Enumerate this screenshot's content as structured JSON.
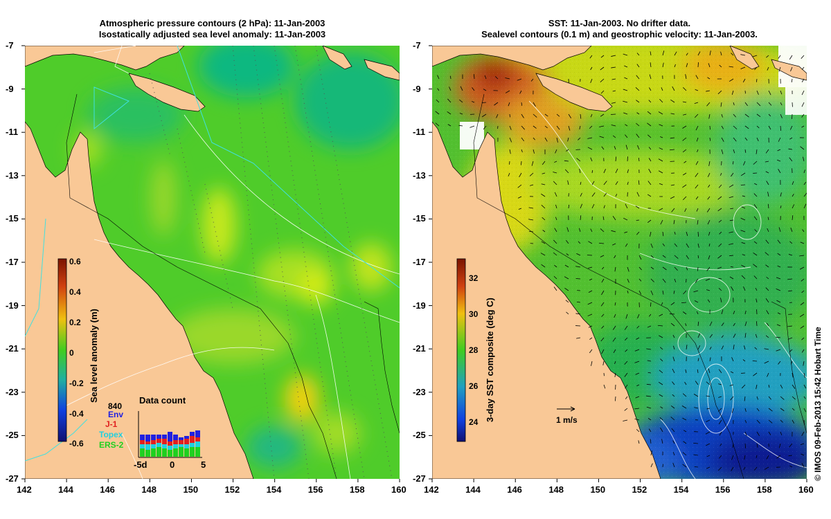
{
  "left_panel": {
    "title_line1": "Atmospheric pressure contours (2 hPa): 11-Jan-2003",
    "title_line2": "Isostatically adjusted sea level anomaly: 11-Jan-2003",
    "colorbar": {
      "label": "Sea level anomaly (m)",
      "ticks": [
        "0.6",
        "0.4",
        "0.2",
        "0",
        "-0.2",
        "-0.4",
        "-0.6"
      ],
      "range": [
        -0.6,
        0.6
      ]
    },
    "data_count": {
      "title": "Data count",
      "max_label": "840",
      "legend": [
        {
          "name": "Env",
          "color": "#2020e0"
        },
        {
          "name": "J-1",
          "color": "#e02020"
        },
        {
          "name": "Topex",
          "color": "#20d0e0"
        },
        {
          "name": "ERS-2",
          "color": "#20d020"
        }
      ],
      "x_ticks": [
        "-5d",
        "0",
        "5"
      ]
    }
  },
  "right_panel": {
    "title_line1": "SST: 11-Jan-2003. No drifter data.",
    "title_line2": "Sealevel contours (0.1 m) and geostrophic velocity: 11-Jan-2003.",
    "colorbar": {
      "label": "3-day SST composite (deg C)",
      "ticks": [
        "32",
        "30",
        "28",
        "26",
        "24"
      ],
      "range": [
        23,
        33
      ]
    },
    "scale_label": "1 m/s"
  },
  "axes": {
    "lat_ticks": [
      "-7",
      "-9",
      "-11",
      "-13",
      "-15",
      "-17",
      "-19",
      "-21",
      "-23",
      "-25",
      "-27"
    ],
    "lon_ticks": [
      "142",
      "144",
      "146",
      "148",
      "150",
      "152",
      "154",
      "156",
      "158",
      "160"
    ]
  },
  "colors": {
    "land": "#f9c896",
    "sla_base": "#44cc22",
    "sst_base": "#55c030"
  },
  "credit": "© IMOS 09-Feb-2013 15:42 Hobart Time"
}
